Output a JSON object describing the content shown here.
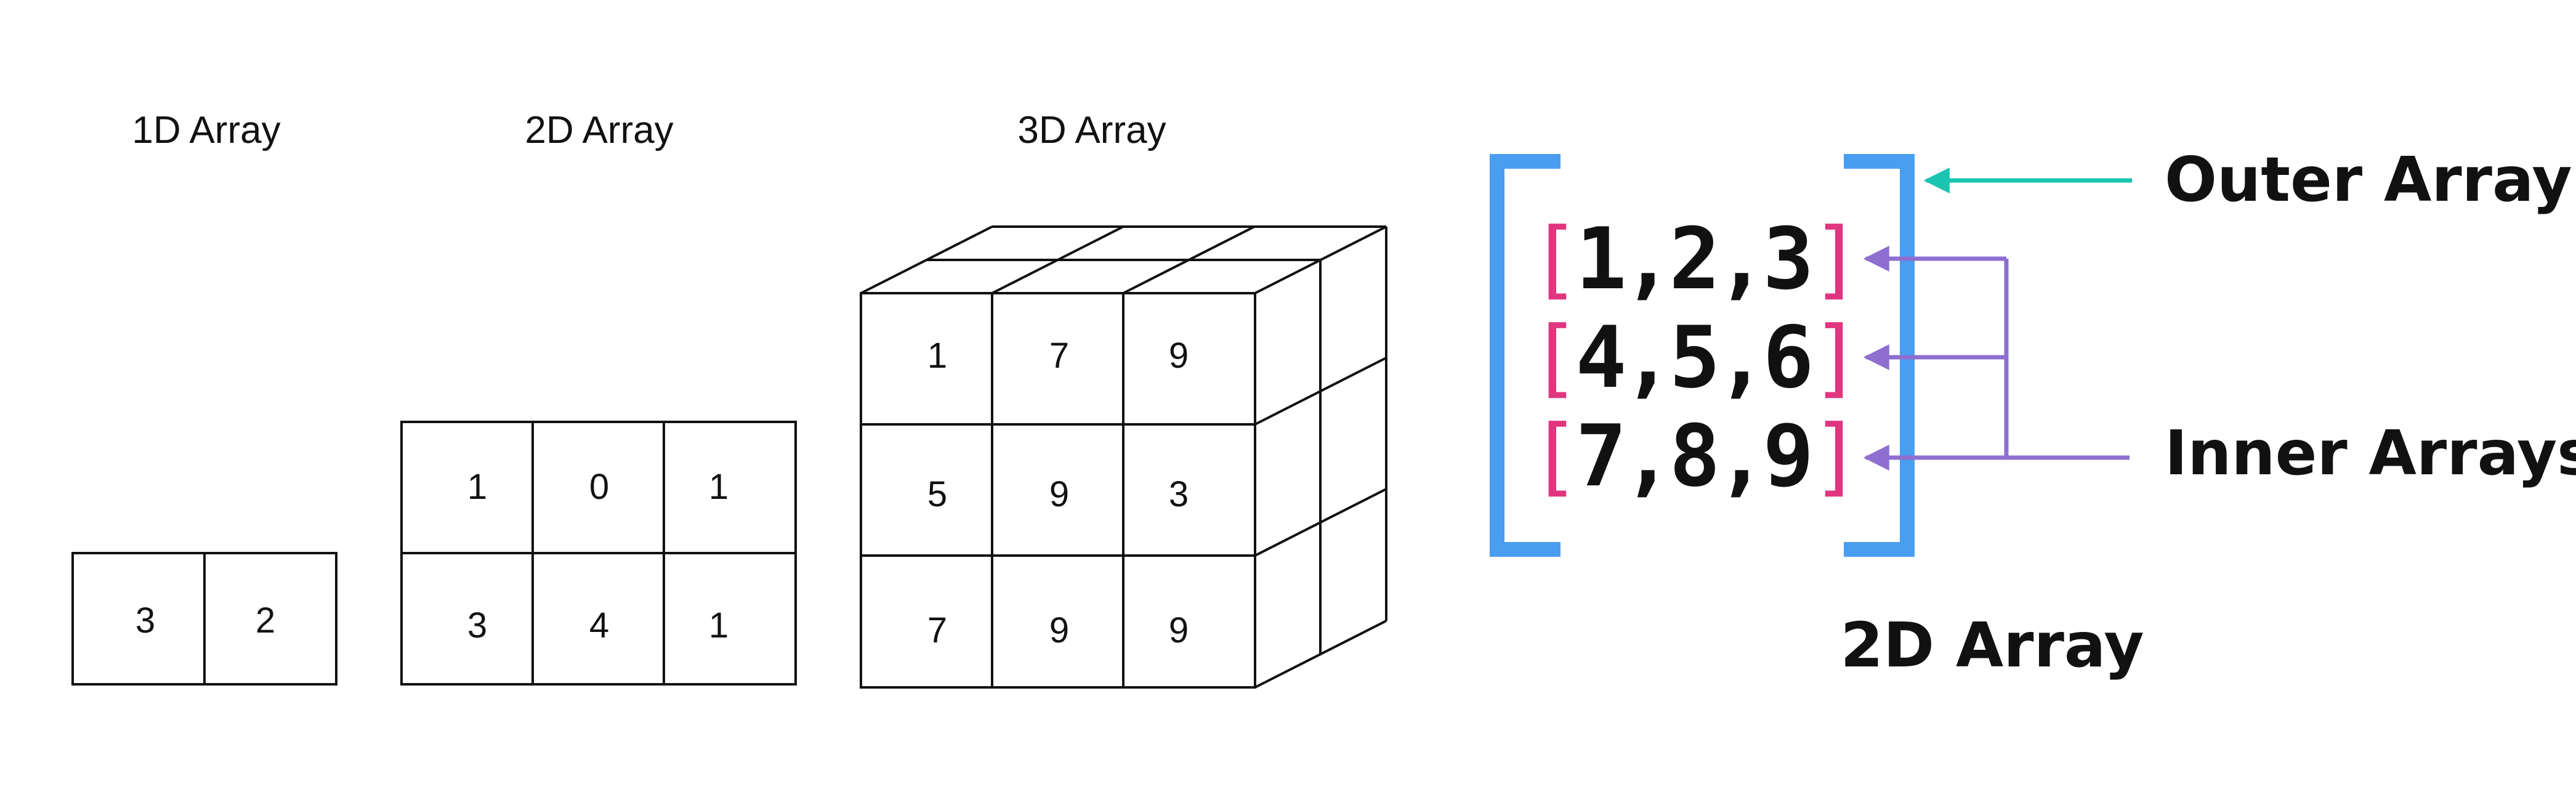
{
  "captions": {
    "array_1d": "1D Array",
    "array_2d": "2D Array",
    "array_3d": "3D Array"
  },
  "array_1d": [
    "3",
    "2"
  ],
  "array_2d": [
    [
      "1",
      "0",
      "1"
    ],
    [
      "3",
      "4",
      "1"
    ]
  ],
  "array_3d_front": [
    [
      "1",
      "7",
      "9"
    ],
    [
      "5",
      "9",
      "3"
    ],
    [
      "7",
      "9",
      "9"
    ]
  ],
  "nested": {
    "rows": [
      {
        "open": "[",
        "a": "1",
        "sep1": ",",
        "b": "2",
        "sep2": ",",
        "c": "3",
        "close": "]"
      },
      {
        "open": "[",
        "a": "4",
        "sep1": ",",
        "b": "5",
        "sep2": ",",
        "c": "6",
        "close": "]"
      },
      {
        "open": "[",
        "a": "7",
        "sep1": ",",
        "b": "8",
        "sep2": ",",
        "c": "9",
        "close": "]"
      }
    ],
    "outer_label": "Outer Array",
    "inner_label": "Inner Arrays",
    "caption": "2D Array"
  },
  "colors": {
    "outer_bracket": "#4a9ef0",
    "inner_bracket": "#e0357f",
    "outer_arrow": "#19c4b0",
    "inner_arrow": "#8e6fd0",
    "lines": "#111111"
  }
}
